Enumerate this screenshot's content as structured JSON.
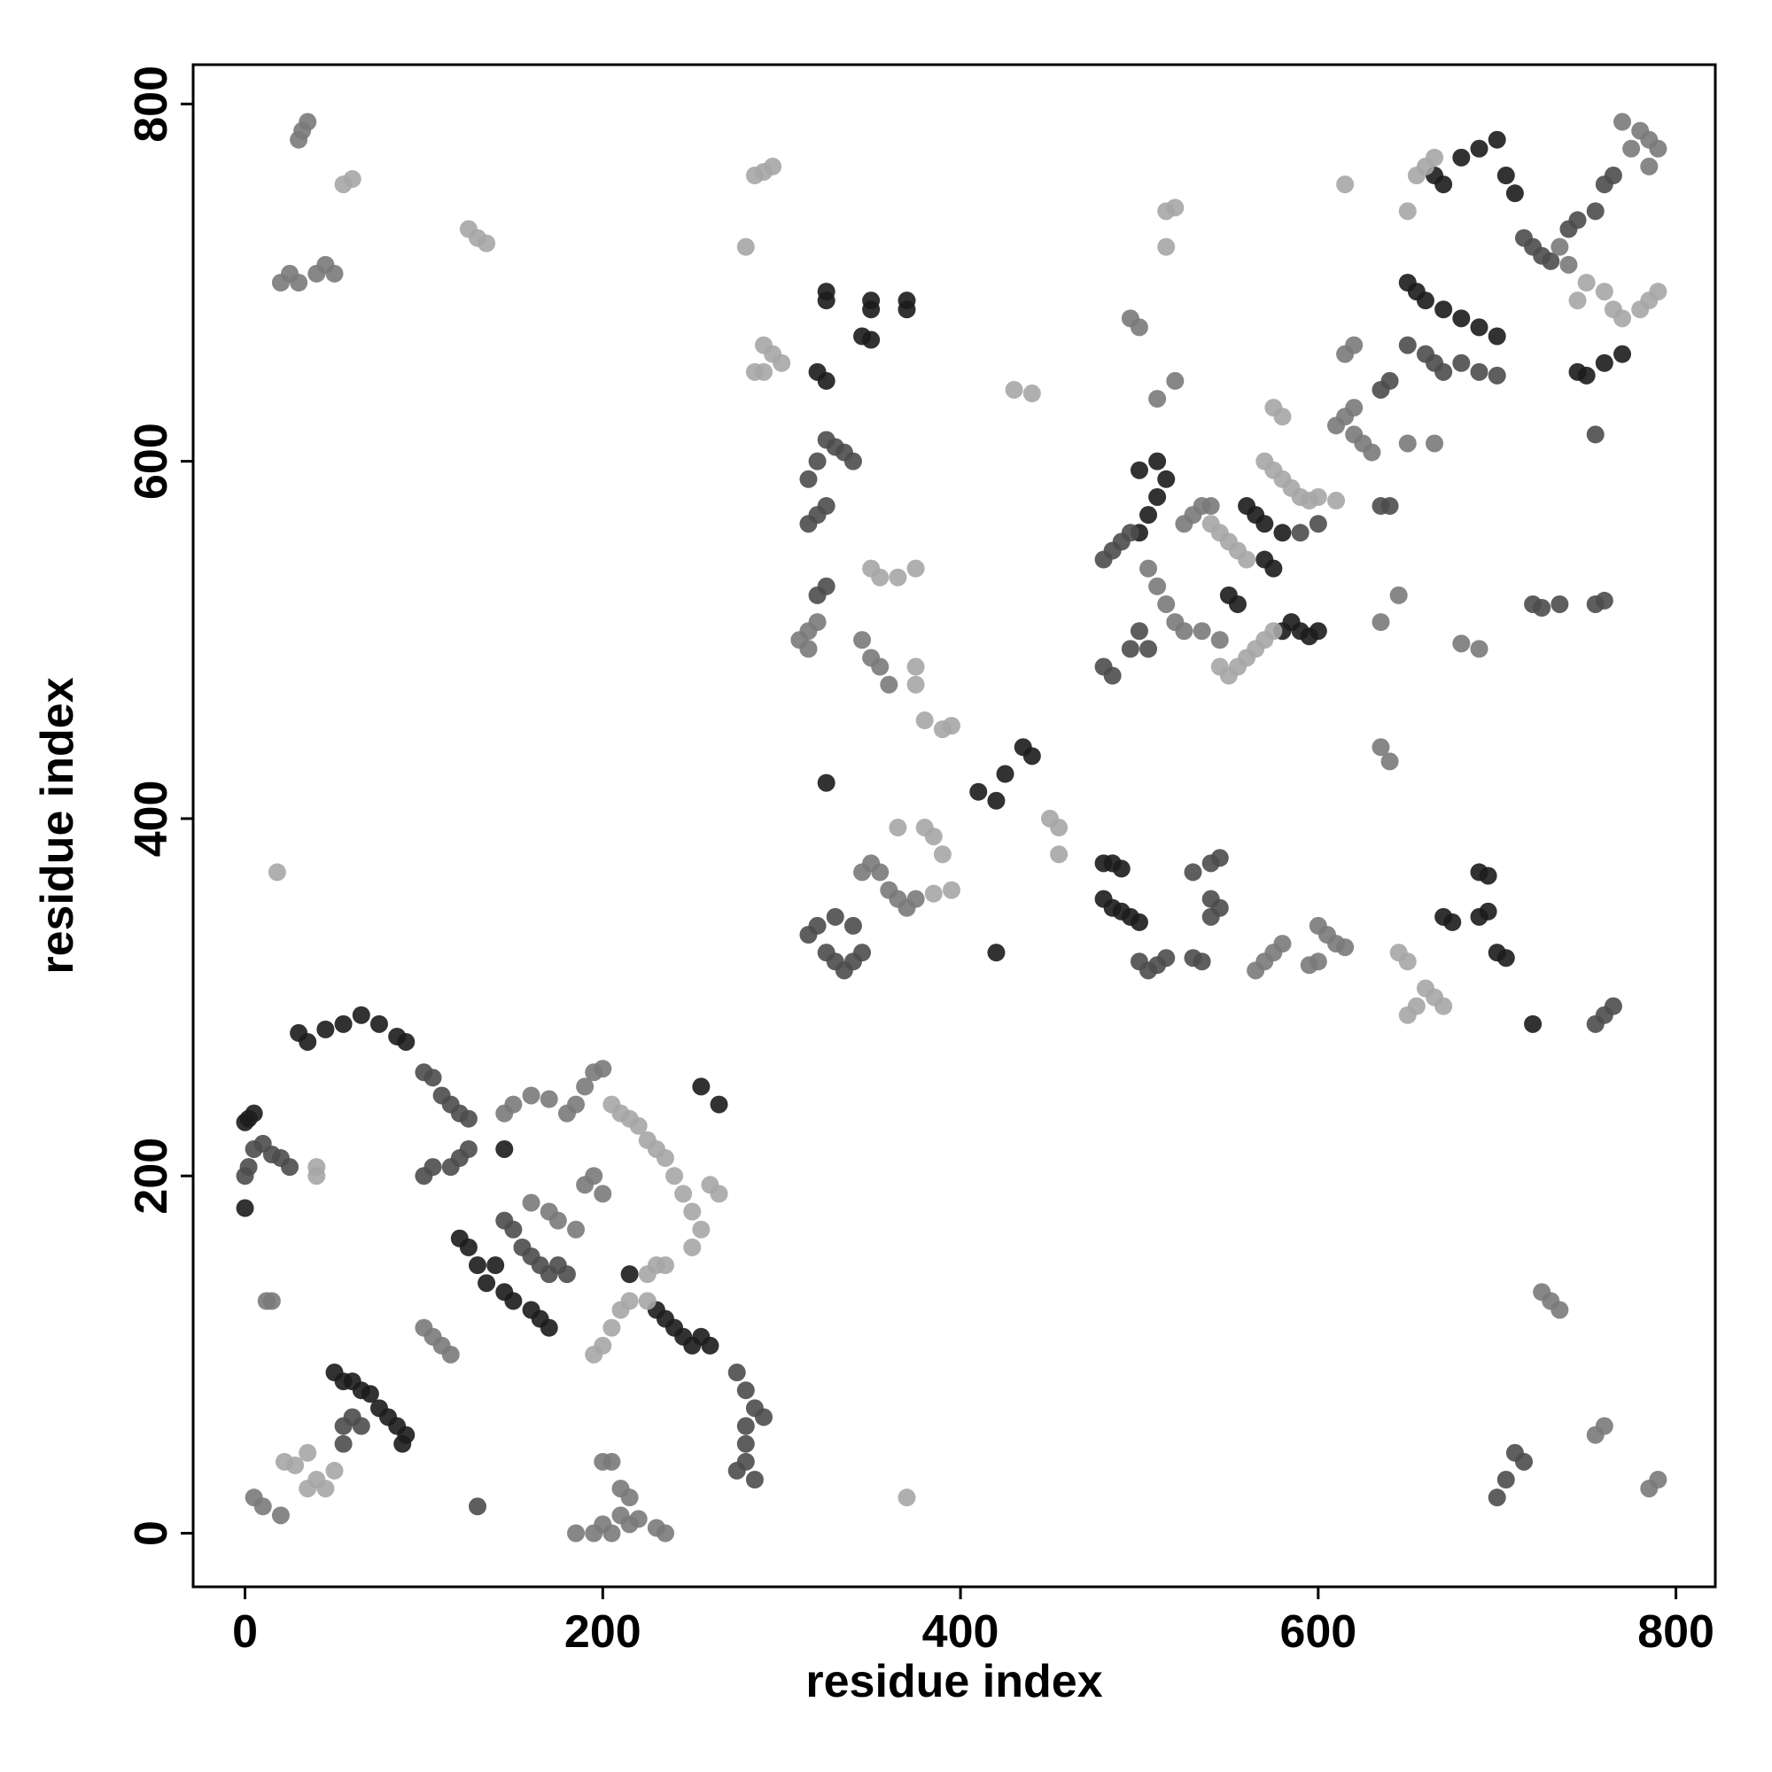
{
  "chart_data": {
    "type": "scatter",
    "xlabel": "residue index",
    "ylabel": "residue index",
    "xlim": [
      -29,
      822
    ],
    "ylim": [
      -30,
      822
    ],
    "xticks": [
      0,
      200,
      400,
      600,
      800
    ],
    "yticks": [
      0,
      200,
      400,
      600,
      800
    ],
    "grid": false,
    "series": [
      {
        "color": "#1c1c1c",
        "x": [
          0,
          2,
          5,
          0,
          50,
          55,
          60,
          65,
          70,
          75,
          80,
          85,
          90,
          88,
          30,
          35,
          45,
          55,
          65,
          75,
          85,
          90,
          120,
          125,
          130,
          135,
          140,
          145,
          150,
          160,
          165,
          170,
          230,
          235,
          240,
          245,
          250,
          255,
          260,
          255,
          265,
          215,
          145,
          325,
          325,
          350,
          350,
          370,
          370,
          345,
          350,
          325,
          320,
          325,
          420,
          410,
          420,
          425,
          435,
          440,
          480,
          485,
          490,
          480,
          485,
          490,
          495,
          500,
          670,
          675,
          690,
          695,
          690,
          695,
          700,
          705,
          720,
          665,
          670,
          680,
          690,
          700,
          705,
          710,
          745,
          750,
          760,
          770,
          650,
          655,
          660,
          670,
          680,
          690,
          700,
          560,
          565,
          570,
          580,
          500,
          505,
          510,
          515,
          510,
          500,
          580,
          585,
          590,
          595,
          600,
          550,
          555,
          570,
          575
        ],
        "values": [
          230,
          232,
          235,
          182,
          90,
          85,
          85,
          80,
          78,
          70,
          65,
          60,
          55,
          50,
          280,
          275,
          282,
          285,
          290,
          285,
          278,
          275,
          165,
          160,
          150,
          140,
          150,
          135,
          130,
          125,
          120,
          115,
          125,
          120,
          115,
          110,
          105,
          110,
          105,
          250,
          240,
          145,
          215,
          690,
          695,
          690,
          685,
          690,
          685,
          670,
          668,
          645,
          650,
          420,
          325,
          415,
          410,
          425,
          440,
          435,
          375,
          375,
          372,
          355,
          350,
          348,
          345,
          342,
          345,
          342,
          370,
          368,
          345,
          348,
          325,
          322,
          285,
          760,
          755,
          770,
          775,
          780,
          760,
          750,
          650,
          648,
          655,
          660,
          700,
          695,
          690,
          685,
          680,
          675,
          670,
          575,
          570,
          565,
          560,
          560,
          570,
          580,
          590,
          600,
          595,
          505,
          510,
          505,
          502,
          505,
          525,
          520,
          545,
          540
        ]
      },
      {
        "color": "#4d4d4d",
        "x": [
          0,
          2,
          5,
          10,
          15,
          20,
          25,
          55,
          60,
          65,
          55,
          130,
          100,
          105,
          110,
          115,
          120,
          125,
          100,
          105,
          115,
          120,
          125,
          145,
          150,
          155,
          160,
          165,
          170,
          175,
          180,
          275,
          280,
          280,
          285,
          290,
          280,
          275,
          285,
          280,
          325,
          330,
          335,
          340,
          320,
          315,
          320,
          325,
          315,
          325,
          320,
          320,
          315,
          325,
          330,
          335,
          340,
          345,
          330,
          340,
          500,
          505,
          510,
          515,
          535,
          530,
          530,
          540,
          545,
          540,
          545,
          540,
          755,
          760,
          765,
          720,
          725,
          735,
          755,
          760,
          715,
          720,
          725,
          730,
          740,
          745,
          755,
          760,
          765,
          650,
          660,
          665,
          670,
          680,
          690,
          700,
          640,
          635,
          480,
          485,
          490,
          495,
          485,
          495,
          500,
          505,
          480,
          590,
          600,
          635,
          640,
          755,
          710,
          715,
          705,
          700
        ],
        "values": [
          200,
          205,
          215,
          218,
          212,
          210,
          205,
          60,
          65,
          60,
          50,
          15,
          258,
          255,
          245,
          240,
          235,
          232,
          200,
          205,
          205,
          210,
          215,
          175,
          170,
          160,
          155,
          150,
          145,
          150,
          145,
          90,
          80,
          60,
          70,
          65,
          40,
          35,
          30,
          50,
          612,
          608,
          605,
          600,
          600,
          590,
          570,
          575,
          565,
          530,
          525,
          340,
          335,
          325,
          320,
          315,
          320,
          325,
          345,
          340,
          320,
          315,
          318,
          322,
          320,
          322,
          370,
          375,
          378,
          355,
          350,
          345,
          285,
          290,
          295,
          520,
          518,
          520,
          520,
          522,
          725,
          720,
          715,
          712,
          730,
          735,
          740,
          755,
          760,
          665,
          660,
          655,
          650,
          655,
          650,
          648,
          645,
          640,
          545,
          550,
          555,
          560,
          480,
          495,
          505,
          495,
          485,
          560,
          565,
          575,
          575,
          615,
          45,
          40,
          30,
          20
        ]
      },
      {
        "color": "#7a7a7a",
        "x": [
          15,
          12,
          5,
          10,
          20,
          20,
          25,
          30,
          40,
          45,
          50,
          30,
          35,
          32,
          145,
          150,
          160,
          170,
          180,
          185,
          190,
          195,
          200,
          160,
          170,
          175,
          185,
          190,
          195,
          200,
          100,
          105,
          110,
          115,
          185,
          195,
          200,
          205,
          210,
          215,
          220,
          230,
          235,
          200,
          205,
          210,
          215,
          310,
          315,
          320,
          315,
          345,
          350,
          355,
          360,
          345,
          350,
          355,
          360,
          365,
          370,
          375,
          565,
          570,
          575,
          580,
          595,
          600,
          600,
          605,
          610,
          615,
          680,
          690,
          645,
          635,
          635,
          640,
          495,
          500,
          520,
          510,
          770,
          775,
          780,
          785,
          790,
          785,
          735,
          740,
          610,
          620,
          625,
          630,
          615,
          620,
          615,
          620,
          650,
          665,
          505,
          510,
          515,
          520,
          525,
          535,
          545,
          525,
          530,
          535,
          540,
          725,
          730,
          735,
          755,
          760,
          785,
          790
        ],
        "values": [
          130,
          130,
          20,
          15,
          10,
          700,
          705,
          700,
          705,
          710,
          705,
          780,
          790,
          785,
          235,
          240,
          245,
          243,
          235,
          240,
          250,
          258,
          260,
          185,
          180,
          175,
          170,
          195,
          200,
          190,
          115,
          110,
          105,
          100,
          0,
          0,
          5,
          0,
          10,
          5,
          8,
          3,
          0,
          40,
          40,
          25,
          20,
          500,
          505,
          510,
          495,
          500,
          490,
          485,
          475,
          370,
          375,
          370,
          360,
          355,
          350,
          355,
          315,
          320,
          325,
          330,
          318,
          320,
          340,
          335,
          330,
          328,
          498,
          495,
          525,
          510,
          440,
          432,
          680,
          675,
          645,
          635,
          790,
          775,
          785,
          780,
          775,
          765,
          720,
          710,
          620,
          615,
          610,
          605,
          625,
          630,
          660,
          665,
          610,
          610,
          540,
          530,
          520,
          510,
          505,
          505,
          500,
          565,
          570,
          575,
          575,
          135,
          130,
          125,
          55,
          60,
          25,
          30
        ]
      },
      {
        "color": "#a6a6a6",
        "x": [
          22,
          28,
          35,
          40,
          45,
          50,
          35,
          55,
          60,
          125,
          130,
          135,
          18,
          40,
          40,
          205,
          210,
          215,
          220,
          225,
          230,
          235,
          240,
          245,
          250,
          255,
          250,
          260,
          265,
          195,
          200,
          205,
          210,
          215,
          225,
          225,
          230,
          235,
          285,
          290,
          295,
          280,
          290,
          295,
          300,
          285,
          290,
          350,
          355,
          365,
          375,
          375,
          375,
          380,
          390,
          395,
          365,
          380,
          385,
          390,
          395,
          385,
          450,
          455,
          455,
          370,
          430,
          440,
          645,
          650,
          650,
          655,
          660,
          665,
          670,
          515,
          520,
          515,
          615,
          650,
          655,
          660,
          665,
          745,
          750,
          760,
          765,
          770,
          780,
          785,
          790,
          575,
          580,
          570,
          575,
          580,
          585,
          590,
          595,
          600,
          610,
          540,
          545,
          550,
          555,
          560,
          545,
          550,
          555,
          560,
          565,
          570,
          575
        ],
        "values": [
          40,
          38,
          45,
          30,
          25,
          35,
          25,
          755,
          758,
          730,
          725,
          722,
          370,
          205,
          200,
          240,
          235,
          232,
          228,
          220,
          215,
          210,
          200,
          190,
          180,
          170,
          160,
          195,
          190,
          100,
          105,
          115,
          125,
          130,
          130,
          145,
          150,
          150,
          760,
          762,
          765,
          720,
          665,
          660,
          655,
          650,
          650,
          540,
          535,
          535,
          540,
          485,
          475,
          455,
          450,
          452,
          395,
          395,
          390,
          380,
          360,
          358,
          400,
          395,
          380,
          20,
          640,
          638,
          325,
          320,
          290,
          295,
          305,
          300,
          295,
          740,
          742,
          720,
          755,
          740,
          760,
          765,
          770,
          690,
          700,
          695,
          685,
          680,
          685,
          690,
          695,
          630,
          625,
          600,
          595,
          590,
          585,
          580,
          578,
          580,
          578,
          565,
          560,
          555,
          550,
          545,
          485,
          480,
          485,
          490,
          495,
          500,
          505
        ]
      }
    ]
  }
}
